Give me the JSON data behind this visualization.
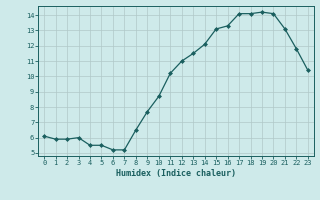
{
  "x": [
    0,
    1,
    2,
    3,
    4,
    5,
    6,
    7,
    8,
    9,
    10,
    11,
    12,
    13,
    14,
    15,
    16,
    17,
    18,
    19,
    20,
    21,
    22,
    23
  ],
  "y": [
    6.1,
    5.9,
    5.9,
    6.0,
    5.5,
    5.5,
    5.2,
    5.2,
    6.5,
    7.7,
    8.7,
    10.2,
    11.0,
    11.5,
    12.1,
    13.1,
    13.3,
    14.1,
    14.1,
    14.2,
    14.1,
    13.1,
    11.8,
    10.4
  ],
  "xlim": [
    -0.5,
    23.5
  ],
  "ylim": [
    4.8,
    14.6
  ],
  "xticks": [
    0,
    1,
    2,
    3,
    4,
    5,
    6,
    7,
    8,
    9,
    10,
    11,
    12,
    13,
    14,
    15,
    16,
    17,
    18,
    19,
    20,
    21,
    22,
    23
  ],
  "yticks": [
    5,
    6,
    7,
    8,
    9,
    10,
    11,
    12,
    13,
    14
  ],
  "xlabel": "Humidex (Indice chaleur)",
  "line_color": "#1a5f5f",
  "marker": "D",
  "marker_size": 2.0,
  "bg_color": "#ceeaea",
  "grid_color": "#b0c8c8"
}
